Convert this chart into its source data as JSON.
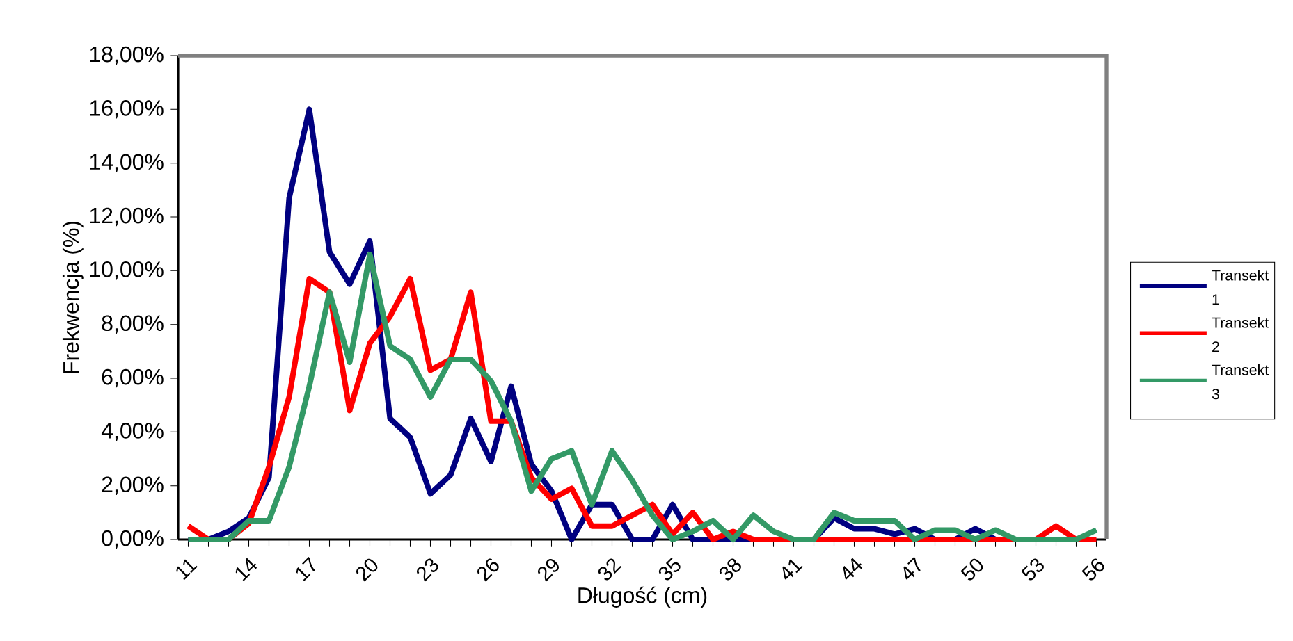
{
  "chart_data": {
    "type": "line",
    "xlabel": "Długość (cm)",
    "ylabel": "Frekwencja (%)",
    "categories": [
      "11",
      null,
      null,
      "14",
      null,
      null,
      "17",
      null,
      null,
      "20",
      null,
      null,
      "23",
      null,
      null,
      "26",
      null,
      null,
      "29",
      null,
      null,
      "32",
      null,
      null,
      "35",
      null,
      null,
      "38",
      null,
      null,
      "41",
      null,
      null,
      "44",
      null,
      null,
      "47",
      null,
      null,
      "50",
      null,
      null,
      "53",
      null,
      null,
      "56"
    ],
    "series": [
      {
        "name": "Transekt 1",
        "color": "#000080",
        "values": [
          0,
          0,
          0.3,
          0.8,
          2.3,
          12.7,
          16.0,
          10.7,
          9.5,
          11.1,
          4.5,
          3.8,
          1.7,
          2.4,
          4.5,
          2.9,
          5.7,
          2.8,
          1.8,
          0,
          1.3,
          1.3,
          0,
          0,
          1.3,
          0,
          0,
          0,
          0,
          0,
          0,
          0,
          0.8,
          0.4,
          0.4,
          0.2,
          0.4,
          0,
          0,
          0.4,
          0,
          0,
          null,
          null,
          null,
          null
        ]
      },
      {
        "name": "Transekt 2",
        "color": "#ff0000",
        "values": [
          0.5,
          0,
          0,
          0.6,
          2.7,
          5.3,
          9.7,
          9.2,
          4.8,
          7.3,
          8.3,
          9.7,
          6.3,
          6.7,
          9.2,
          4.4,
          4.4,
          2.3,
          1.5,
          1.9,
          0.5,
          0.5,
          0.9,
          1.3,
          0.2,
          1.0,
          0,
          0.3,
          0,
          0,
          0,
          0,
          0,
          0,
          0,
          0,
          0,
          0,
          0,
          0,
          0,
          0,
          0,
          0.5,
          0,
          0
        ]
      },
      {
        "name": "Transekt 3",
        "color": "#339966",
        "values": [
          0,
          0,
          0,
          0.7,
          0.7,
          2.7,
          5.7,
          9.2,
          6.6,
          10.6,
          7.2,
          6.7,
          5.3,
          6.7,
          6.7,
          5.9,
          4.4,
          1.8,
          3.0,
          3.3,
          1.3,
          3.3,
          2.2,
          0.9,
          0,
          0.3,
          0.7,
          0,
          0.9,
          0.3,
          0,
          0,
          1.0,
          0.7,
          0.7,
          0.7,
          0,
          0.35,
          0.35,
          0,
          0.35,
          0,
          0,
          0,
          0,
          0.35
        ]
      }
    ],
    "ylim": [
      0,
      18
    ],
    "yticks": [
      {
        "value": 0,
        "label": "0,00%"
      },
      {
        "value": 2,
        "label": "2,00%"
      },
      {
        "value": 4,
        "label": "4,00%"
      },
      {
        "value": 6,
        "label": "6,00%"
      },
      {
        "value": 8,
        "label": "8,00%"
      },
      {
        "value": 10,
        "label": "10,00%"
      },
      {
        "value": 12,
        "label": "12,00%"
      },
      {
        "value": 14,
        "label": "14,00%"
      },
      {
        "value": 16,
        "label": "16,00%"
      },
      {
        "value": 18,
        "label": "18,00%"
      }
    ],
    "legend": "right",
    "grid": false,
    "marker": "none",
    "line_style": "solid"
  }
}
